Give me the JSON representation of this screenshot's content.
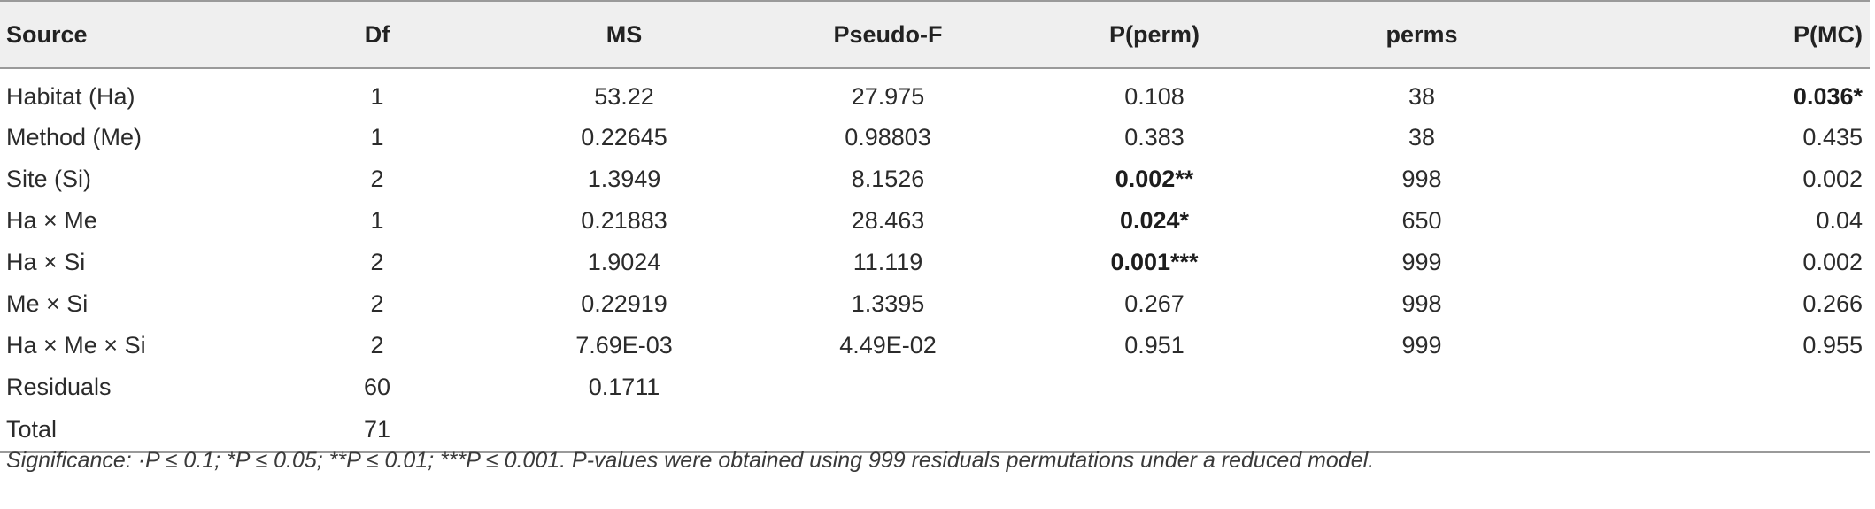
{
  "table": {
    "columns": [
      "Source",
      "Df",
      "MS",
      "Pseudo-F",
      "P(perm)",
      "perms",
      "P(MC)"
    ],
    "rows": [
      {
        "cells": [
          "Habitat (Ha)",
          "1",
          "53.22",
          "27.975",
          "0.108",
          "38",
          "0.036*"
        ],
        "bold": [
          6
        ]
      },
      {
        "cells": [
          "Method (Me)",
          "1",
          "0.22645",
          "0.98803",
          "0.383",
          "38",
          "0.435"
        ],
        "bold": []
      },
      {
        "cells": [
          "Site (Si)",
          "2",
          "1.3949",
          "8.1526",
          "0.002**",
          "998",
          "0.002"
        ],
        "bold": [
          4
        ]
      },
      {
        "cells": [
          "Ha × Me",
          "1",
          "0.21883",
          "28.463",
          "0.024*",
          "650",
          "0.04"
        ],
        "bold": [
          4
        ]
      },
      {
        "cells": [
          "Ha × Si",
          "2",
          "1.9024",
          "11.119",
          "0.001***",
          "999",
          "0.002"
        ],
        "bold": [
          4
        ]
      },
      {
        "cells": [
          "Me × Si",
          "2",
          "0.22919",
          "1.3395",
          "0.267",
          "998",
          "0.266"
        ],
        "bold": []
      },
      {
        "cells": [
          "Ha × Me × Si",
          "2",
          "7.69E-03",
          "4.49E-02",
          "0.951",
          "999",
          "0.955"
        ],
        "bold": []
      },
      {
        "cells": [
          "Residuals",
          "60",
          "0.1711",
          "",
          "",
          "",
          ""
        ],
        "bold": []
      },
      {
        "cells": [
          "Total",
          "71",
          "",
          "",
          "",
          "",
          ""
        ],
        "bold": []
      }
    ]
  },
  "footnote": "Significance: ·P ≤ 0.1; *P ≤ 0.05; **P ≤ 0.01; ***P ≤ 0.001. P-values were obtained using 999 residuals permutations under a reduced model."
}
